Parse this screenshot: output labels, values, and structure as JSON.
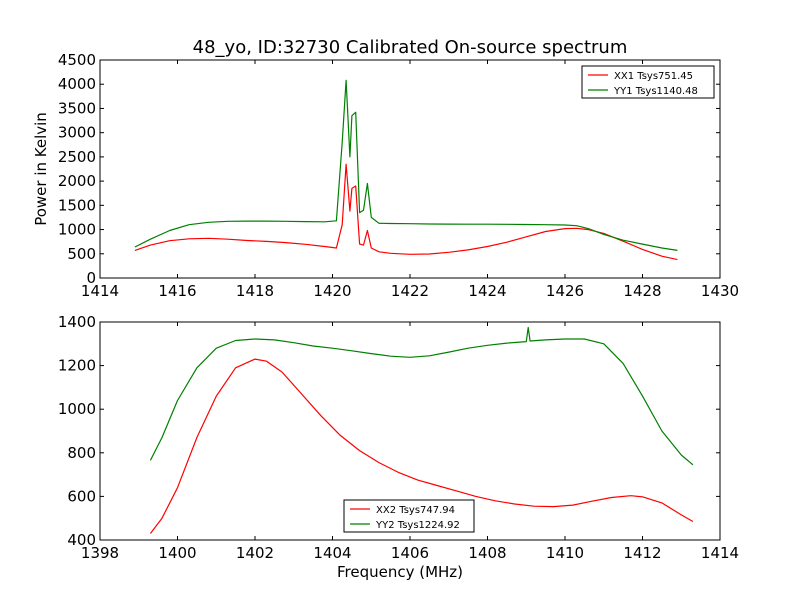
{
  "chart_data": [
    {
      "type": "line",
      "title": "48_yo, ID:32730 Calibrated On-source spectrum",
      "xlabel": "",
      "ylabel": "Power in Kelvin",
      "xlim": [
        1414,
        1430
      ],
      "ylim": [
        0,
        4500
      ],
      "xticks": [
        1414,
        1416,
        1418,
        1420,
        1422,
        1424,
        1426,
        1428,
        1430
      ],
      "yticks": [
        0,
        500,
        1000,
        1500,
        2000,
        2500,
        3000,
        3500,
        4000,
        4500
      ],
      "legend": {
        "position": "top-right"
      },
      "series": [
        {
          "name": "XX1 Tsys751.45",
          "color": "#ff0000",
          "x": [
            1414.9,
            1415.3,
            1415.8,
            1416.3,
            1416.8,
            1417.3,
            1417.8,
            1418.3,
            1418.8,
            1419.3,
            1419.8,
            1420.1,
            1420.25,
            1420.35,
            1420.45,
            1420.5,
            1420.6,
            1420.7,
            1420.8,
            1420.9,
            1421.0,
            1421.2,
            1421.5,
            1422.0,
            1422.5,
            1423.0,
            1423.5,
            1424.0,
            1424.5,
            1425.0,
            1425.5,
            1426.0,
            1426.3,
            1426.6,
            1427.0,
            1427.5,
            1428.0,
            1428.5,
            1428.9
          ],
          "y": [
            570,
            680,
            770,
            810,
            820,
            800,
            775,
            755,
            730,
            695,
            650,
            620,
            1100,
            2350,
            1380,
            1850,
            1900,
            700,
            680,
            980,
            620,
            540,
            510,
            490,
            495,
            530,
            580,
            650,
            740,
            850,
            960,
            1020,
            1025,
            1000,
            920,
            760,
            590,
            450,
            380
          ]
        },
        {
          "name": "YY1 Tsys1140.48",
          "color": "#008000",
          "x": [
            1414.9,
            1415.3,
            1415.8,
            1416.3,
            1416.8,
            1417.3,
            1417.8,
            1418.3,
            1418.8,
            1419.3,
            1419.8,
            1420.1,
            1420.25,
            1420.35,
            1420.45,
            1420.5,
            1420.6,
            1420.7,
            1420.8,
            1420.9,
            1421.0,
            1421.2,
            1421.5,
            1422.0,
            1422.5,
            1423.0,
            1423.5,
            1424.0,
            1424.5,
            1425.0,
            1425.5,
            1426.0,
            1426.3,
            1426.6,
            1427.0,
            1427.5,
            1428.0,
            1428.5,
            1428.9
          ],
          "y": [
            640,
            800,
            980,
            1100,
            1150,
            1170,
            1175,
            1175,
            1170,
            1165,
            1160,
            1180,
            2800,
            4080,
            2500,
            3350,
            3420,
            1350,
            1400,
            1950,
            1250,
            1130,
            1125,
            1120,
            1115,
            1112,
            1110,
            1110,
            1108,
            1105,
            1100,
            1095,
            1080,
            1020,
            900,
            780,
            700,
            620,
            570
          ]
        }
      ]
    },
    {
      "type": "line",
      "title": "",
      "xlabel": "Frequency (MHz)",
      "ylabel": "",
      "xlim": [
        1398,
        1414
      ],
      "ylim": [
        400,
        1400
      ],
      "xticks": [
        1398,
        1400,
        1402,
        1404,
        1406,
        1408,
        1410,
        1412,
        1414
      ],
      "yticks": [
        400,
        600,
        800,
        1000,
        1200,
        1400
      ],
      "legend": {
        "position": "bottom-center"
      },
      "series": [
        {
          "name": "XX2 Tsys747.94",
          "color": "#ff0000",
          "x": [
            1399.3,
            1399.6,
            1400.0,
            1400.5,
            1401.0,
            1401.5,
            1402.0,
            1402.3,
            1402.7,
            1403.2,
            1403.7,
            1404.2,
            1404.7,
            1405.2,
            1405.7,
            1406.2,
            1406.7,
            1407.2,
            1407.7,
            1408.2,
            1408.7,
            1409.2,
            1409.7,
            1410.2,
            1410.7,
            1411.2,
            1411.7,
            1412.0,
            1412.5,
            1413.0,
            1413.3
          ],
          "y": [
            430,
            500,
            640,
            870,
            1060,
            1190,
            1230,
            1220,
            1170,
            1070,
            970,
            880,
            810,
            755,
            710,
            675,
            650,
            625,
            600,
            580,
            565,
            555,
            553,
            560,
            578,
            595,
            603,
            598,
            570,
            515,
            485
          ]
        },
        {
          "name": "YY2 Tsys1224.92",
          "color": "#008000",
          "x": [
            1399.3,
            1399.6,
            1400.0,
            1400.5,
            1401.0,
            1401.5,
            1402.0,
            1402.5,
            1403.0,
            1403.5,
            1404.0,
            1404.5,
            1405.0,
            1405.5,
            1406.0,
            1406.5,
            1407.0,
            1407.5,
            1408.0,
            1408.5,
            1409.0,
            1409.05,
            1409.1,
            1409.5,
            1410.0,
            1410.5,
            1411.0,
            1411.5,
            1412.0,
            1412.5,
            1413.0,
            1413.3
          ],
          "y": [
            765,
            870,
            1040,
            1190,
            1280,
            1315,
            1322,
            1318,
            1305,
            1290,
            1280,
            1268,
            1255,
            1243,
            1238,
            1245,
            1262,
            1280,
            1293,
            1303,
            1310,
            1375,
            1313,
            1318,
            1322,
            1322,
            1300,
            1210,
            1060,
            900,
            790,
            745
          ]
        }
      ]
    }
  ]
}
